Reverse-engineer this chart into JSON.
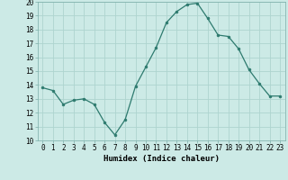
{
  "x": [
    0,
    1,
    2,
    3,
    4,
    5,
    6,
    7,
    8,
    9,
    10,
    11,
    12,
    13,
    14,
    15,
    16,
    17,
    18,
    19,
    20,
    21,
    22,
    23
  ],
  "y": [
    13.8,
    13.6,
    12.6,
    12.9,
    13.0,
    12.6,
    11.3,
    10.4,
    11.5,
    13.9,
    15.3,
    16.7,
    18.5,
    19.3,
    19.8,
    19.9,
    18.8,
    17.6,
    17.5,
    16.6,
    15.1,
    14.1,
    13.2,
    13.2
  ],
  "line_color": "#2d7a6e",
  "marker_color": "#2d7a6e",
  "bg_color": "#cceae6",
  "grid_color": "#aed4cf",
  "xlabel": "Humidex (Indice chaleur)",
  "xlim": [
    -0.5,
    23.5
  ],
  "ylim": [
    10,
    20
  ],
  "yticks": [
    10,
    11,
    12,
    13,
    14,
    15,
    16,
    17,
    18,
    19,
    20
  ],
  "xticks": [
    0,
    1,
    2,
    3,
    4,
    5,
    6,
    7,
    8,
    9,
    10,
    11,
    12,
    13,
    14,
    15,
    16,
    17,
    18,
    19,
    20,
    21,
    22,
    23
  ],
  "xtick_labels": [
    "0",
    "1",
    "2",
    "3",
    "4",
    "5",
    "6",
    "7",
    "8",
    "9",
    "10",
    "11",
    "12",
    "13",
    "14",
    "15",
    "16",
    "17",
    "18",
    "19",
    "20",
    "21",
    "22",
    "23"
  ],
  "label_fontsize": 6.5,
  "tick_fontsize": 5.5
}
